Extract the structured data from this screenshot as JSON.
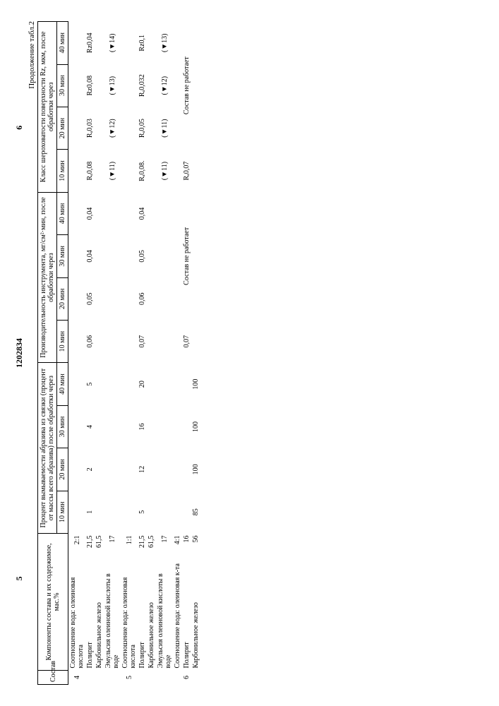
{
  "topnums": {
    "a": "5",
    "b": "1202834",
    "c": "6"
  },
  "cont": "Продолжение табл.2",
  "head": {
    "colA": "Состав",
    "colB": "Компоненты состава и их содержимое, мас.%",
    "grpC": "Процент вымываемости абра­зива из связки (процент от массы всего абразива) после обработки через",
    "grpD": "Производительность инструмента, мг/см²·мин, после обработки через",
    "grpE": "Класс шероховатости поверх­ности Rz, мкм, после обра­ботки через",
    "t10": "10 мин",
    "t20": "20 мин",
    "t30": "30 мин",
    "t40": "40 мин"
  },
  "rows": [
    {
      "n": "4",
      "comp": "Соотношение вода: олеиновая кисло­та",
      "v": "2:1"
    },
    {
      "comp": "Полирит",
      "v": "21,5",
      "c1": "1",
      "c2": "2",
      "c3": "4",
      "c4": "5",
      "d1": "0,06",
      "d2": "0,05",
      "d3": "0,04",
      "d4": "0,04",
      "e1": "Rₐ0,08",
      "e2": "Rₐ0,03",
      "e3": "Rz0,08",
      "e4": "Rz0,04"
    },
    {
      "comp": "Карбонильное железо",
      "v": "61,5"
    },
    {
      "comp": "Эмульсия олеиновой кислоты в воде",
      "v": "17",
      "e1": "(▼11)",
      "e2": "(▼12)",
      "e3": "(▼13)",
      "e4": "(▼14)"
    },
    {
      "n": "5",
      "comp": "Соотношение вода: олеиновая кисло­та",
      "v": "1:1"
    },
    {
      "comp": "Полирит",
      "v": "21,5",
      "c1": "5",
      "c2": "12",
      "c3": "16",
      "c4": "20",
      "d1": "0,07",
      "d2": "0,06",
      "d3": "0,05",
      "d4": "0,04",
      "e1": "Rₐ0,08.",
      "e2": "Rₐ0,05",
      "e3": "Rₐ0,032",
      "e4": "Rz0,1"
    },
    {
      "comp": "Карбонильное железо",
      "v": "61,5"
    },
    {
      "comp": "Эмульсия олеиновой кислоты в воде",
      "v": "17",
      "e1": "(▼11)",
      "e2": "(▼11)",
      "e3": "(▼12)",
      "e4": "(▼13)"
    },
    {
      "comp": "Соотношение вода: олеиновая к-та",
      "v": "4:1"
    },
    {
      "n": "6",
      "comp": "Полирит",
      "v": "16",
      "d1": "0,07",
      "dspan": "Состав не работает",
      "e1": "Rₐ0,07",
      "espan": "Состав не работает"
    },
    {
      "comp": "Карбонильное железо",
      "v": "56",
      "c1": "85",
      "c2": "100",
      "c3": "100",
      "c4": "100"
    }
  ]
}
